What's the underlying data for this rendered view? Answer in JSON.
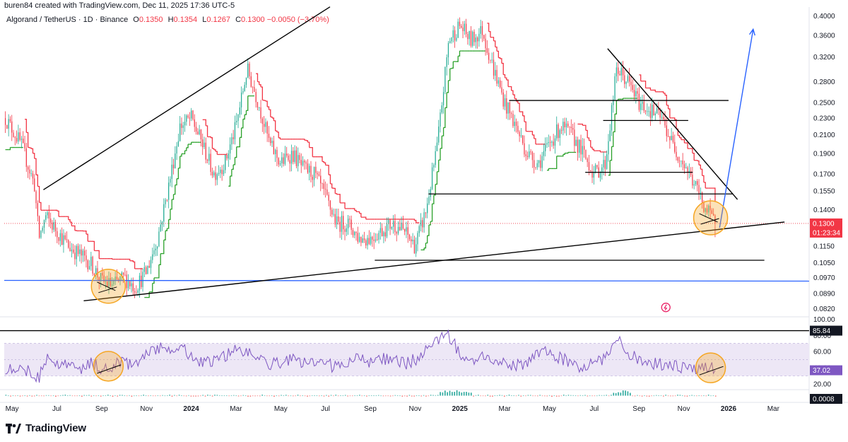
{
  "header": {
    "text": "buren84 created with TradingView.com, Dec 11, 2025 17:36 UTC-5"
  },
  "legend": {
    "symbol": "Algorand / TetherUS · 1D · Binance",
    "open_label": "O",
    "open": "0.1350",
    "high_label": "H",
    "high": "0.1354",
    "low_label": "L",
    "low": "0.1267",
    "close_label": "C",
    "close": "0.1300",
    "change": "−0.0050 (−3.70%)"
  },
  "colors": {
    "up": "#22ab94",
    "down": "#f23645",
    "supertrend_up": "#2aa12a",
    "supertrend_down": "#f23645",
    "rsi": "#7e57c2",
    "rsi_band": "#ede7f6",
    "blue_line": "#2962ff",
    "circle": "#f5a623"
  },
  "brand": {
    "text": "TradingView",
    "icon": "tradingview-logo-icon"
  },
  "chart_data": [
    {
      "type": "candlestick",
      "scale": "log",
      "ylim": [
        0.079,
        0.41
      ],
      "y_ticks": [
        "0.4000",
        "0.3600",
        "0.3200",
        "0.2800",
        "0.2500",
        "0.2300",
        "0.2100",
        "0.1900",
        "0.1700",
        "0.1550",
        "0.1400",
        "0.1150",
        "0.1050",
        "0.0970",
        "0.0890",
        "0.0820"
      ],
      "x_ticks": [
        "May",
        "Jul",
        "Sep",
        "Nov",
        "2024",
        "Mar",
        "May",
        "Jul",
        "Sep",
        "Nov",
        "2025",
        "Mar",
        "May",
        "Jul",
        "Sep",
        "Nov",
        "2026",
        "Mar"
      ],
      "x_tick_values": [
        0,
        2,
        4,
        6,
        8,
        10,
        12,
        14,
        16,
        18,
        20,
        22,
        24,
        26,
        28,
        30,
        32,
        34
      ],
      "x_range": [
        -0.35,
        35.6
      ],
      "price_path": [
        [
          -0.3,
          0.23
        ],
        [
          0.4,
          0.2
        ],
        [
          1.0,
          0.16
        ],
        [
          1.2,
          0.12
        ],
        [
          1.5,
          0.135
        ],
        [
          2.0,
          0.125
        ],
        [
          2.5,
          0.115
        ],
        [
          3.0,
          0.11
        ],
        [
          3.5,
          0.105
        ],
        [
          4.0,
          0.095
        ],
        [
          4.5,
          0.093
        ],
        [
          5.0,
          0.097
        ],
        [
          5.5,
          0.092
        ],
        [
          6.0,
          0.1
        ],
        [
          6.5,
          0.12
        ],
        [
          7.0,
          0.16
        ],
        [
          7.5,
          0.22
        ],
        [
          8.0,
          0.23
        ],
        [
          8.5,
          0.2
        ],
        [
          9.0,
          0.17
        ],
        [
          9.5,
          0.18
        ],
        [
          10.0,
          0.22
        ],
        [
          10.5,
          0.3
        ],
        [
          11.0,
          0.25
        ],
        [
          11.5,
          0.2
        ],
        [
          12.0,
          0.18
        ],
        [
          12.5,
          0.19
        ],
        [
          13.0,
          0.175
        ],
        [
          13.5,
          0.17
        ],
        [
          14.0,
          0.15
        ],
        [
          14.5,
          0.13
        ],
        [
          15.0,
          0.13
        ],
        [
          15.5,
          0.12
        ],
        [
          16.0,
          0.12
        ],
        [
          16.5,
          0.125
        ],
        [
          17.0,
          0.13
        ],
        [
          17.5,
          0.125
        ],
        [
          18.0,
          0.115
        ],
        [
          18.5,
          0.14
        ],
        [
          19.0,
          0.2
        ],
        [
          19.5,
          0.35
        ],
        [
          20.0,
          0.38
        ],
        [
          20.5,
          0.35
        ],
        [
          21.0,
          0.37
        ],
        [
          21.5,
          0.3
        ],
        [
          22.0,
          0.25
        ],
        [
          22.5,
          0.22
        ],
        [
          23.0,
          0.19
        ],
        [
          23.5,
          0.18
        ],
        [
          24.0,
          0.2
        ],
        [
          24.5,
          0.22
        ],
        [
          25.0,
          0.21
        ],
        [
          25.5,
          0.19
        ],
        [
          26.0,
          0.17
        ],
        [
          26.5,
          0.18
        ],
        [
          27.0,
          0.3
        ],
        [
          27.5,
          0.28
        ],
        [
          28.0,
          0.25
        ],
        [
          28.5,
          0.24
        ],
        [
          29.0,
          0.23
        ],
        [
          29.5,
          0.2
        ],
        [
          30.0,
          0.18
        ],
        [
          30.5,
          0.16
        ],
        [
          31.0,
          0.14
        ],
        [
          31.4,
          0.13
        ]
      ],
      "overlays": {
        "price_line": 0.13,
        "blue_horizontal": 0.0955,
        "horizontal_levels": [
          {
            "price": 0.1525,
            "x_from": 18.6,
            "x_to": 32.2
          },
          {
            "price": 0.1065,
            "x_from": 16.2,
            "x_to": 33.6
          },
          {
            "price": 0.253,
            "x_from": 22.2,
            "x_to": 32.0
          },
          {
            "price": 0.227,
            "x_from": 26.4,
            "x_to": 30.2
          },
          {
            "price": 0.1715,
            "x_from": 25.6,
            "x_to": 30.4
          }
        ],
        "trendlines": [
          {
            "from": [
              1.4,
              0.156
            ],
            "to": [
              14.2,
              0.42
            ]
          },
          {
            "from": [
              3.2,
              0.0855
            ],
            "to": [
              34.5,
              0.131
            ]
          },
          {
            "from": [
              26.6,
              0.335
            ],
            "to": [
              32.4,
              0.148
            ]
          }
        ],
        "projection": {
          "from": [
            31.6,
            0.127
          ],
          "to": [
            33.1,
            0.372
          ]
        },
        "highlight_circles": [
          {
            "x": 4.3,
            "price": 0.0925
          },
          {
            "x": 31.2,
            "price": 0.134
          }
        ]
      }
    },
    {
      "type": "line",
      "name": "RSI",
      "value_label": "37.02",
      "upper_value_label": "85.84",
      "ylim": [
        14,
        102
      ],
      "y_ticks": [
        "100.00",
        "80.00",
        "60.00",
        "40.00",
        "20.00"
      ],
      "band": [
        30,
        70
      ],
      "rsi_path": [
        [
          -0.3,
          40
        ],
        [
          0.5,
          40
        ],
        [
          1.2,
          28
        ],
        [
          1.5,
          50
        ],
        [
          2.2,
          45
        ],
        [
          3.0,
          38
        ],
        [
          3.5,
          45
        ],
        [
          4.0,
          40
        ],
        [
          4.5,
          42
        ],
        [
          5.0,
          48
        ],
        [
          5.5,
          42
        ],
        [
          6.0,
          60
        ],
        [
          6.5,
          63
        ],
        [
          7.0,
          65
        ],
        [
          7.5,
          67
        ],
        [
          8.0,
          55
        ],
        [
          8.5,
          45
        ],
        [
          9.0,
          48
        ],
        [
          9.5,
          55
        ],
        [
          10.0,
          64
        ],
        [
          10.5,
          60
        ],
        [
          11.0,
          50
        ],
        [
          11.5,
          45
        ],
        [
          12.0,
          46
        ],
        [
          12.5,
          50
        ],
        [
          13.0,
          45
        ],
        [
          13.5,
          46
        ],
        [
          14.0,
          45
        ],
        [
          14.5,
          40
        ],
        [
          15.0,
          48
        ],
        [
          15.5,
          50
        ],
        [
          16.0,
          47
        ],
        [
          16.5,
          52
        ],
        [
          17.0,
          50
        ],
        [
          17.5,
          45
        ],
        [
          18.0,
          50
        ],
        [
          18.5,
          60
        ],
        [
          19.0,
          75
        ],
        [
          19.5,
          80
        ],
        [
          20.0,
          58
        ],
        [
          20.5,
          50
        ],
        [
          21.0,
          58
        ],
        [
          21.5,
          45
        ],
        [
          22.0,
          44
        ],
        [
          22.5,
          42
        ],
        [
          23.0,
          48
        ],
        [
          23.5,
          55
        ],
        [
          24.0,
          60
        ],
        [
          24.5,
          52
        ],
        [
          25.0,
          48
        ],
        [
          25.5,
          40
        ],
        [
          26.0,
          46
        ],
        [
          26.5,
          50
        ],
        [
          27.0,
          80
        ],
        [
          27.5,
          60
        ],
        [
          28.0,
          48
        ],
        [
          28.5,
          44
        ],
        [
          29.0,
          45
        ],
        [
          29.5,
          42
        ],
        [
          30.0,
          40
        ],
        [
          30.5,
          38
        ],
        [
          31.0,
          42
        ],
        [
          31.4,
          37
        ]
      ]
    },
    {
      "type": "bar",
      "name": "histogram",
      "value_label": "0.0008"
    }
  ]
}
